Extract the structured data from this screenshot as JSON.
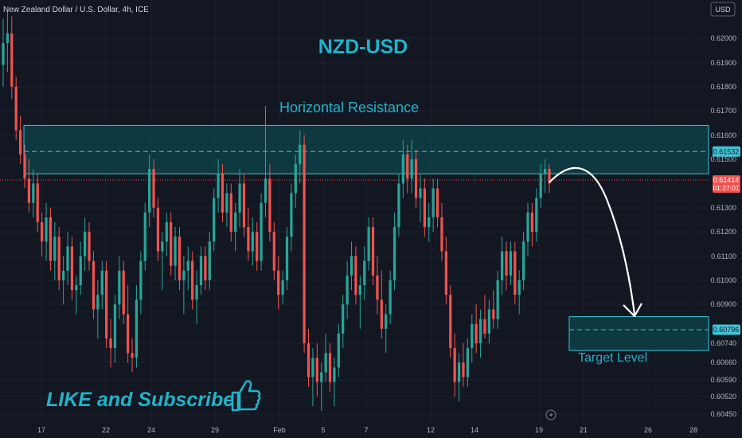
{
  "header": {
    "symbol": "New Zealand Dollar / U.S. Dollar, 4h, ICE",
    "currency_button": "USD"
  },
  "annotations": {
    "title": "NZD-USD",
    "resistance_label": "Horizontal Resistance",
    "target_label": "Target Level",
    "cta": "LIKE and Subscribe",
    "thumb_icon": "thumbs-up-icon",
    "lightning_icon": "lightning-icon"
  },
  "colors": {
    "background": "#131722",
    "bull": "#26a69a",
    "bear": "#ef5350",
    "accent": "#1fb3c9",
    "zone_fill": "#0e4046",
    "zone_border": "#3ec4d6",
    "text": "#b2b5be"
  },
  "chart_data": {
    "type": "candlestick",
    "title": "NZD-USD",
    "symbol": "New Zealand Dollar / U.S. Dollar, 4h, ICE",
    "interval": "4h",
    "y_ticks": [
      "0.62000",
      "0.61900",
      "0.61800",
      "0.61700",
      "0.61600",
      "0.61500",
      "0.61300",
      "0.61200",
      "0.61100",
      "0.61000",
      "0.60900",
      "0.60740",
      "0.60660",
      "0.60590",
      "0.60520",
      "0.60450"
    ],
    "x_ticks": [
      "17",
      "22",
      "24",
      "29",
      "Feb",
      "5",
      "7",
      "12",
      "14",
      "19",
      "21",
      "26",
      "28"
    ],
    "current_price": {
      "value": "0.61414",
      "countdown": "01:27:01"
    },
    "resistance_zone": {
      "low": 0.6144,
      "high": 0.6164,
      "mid": 0.61532,
      "mid_label": "0.61532"
    },
    "target_zone": {
      "low": 0.6071,
      "high": 0.6085,
      "mid": 0.60796,
      "mid_label": "0.60796"
    },
    "ylim": [
      0.6042,
      0.6213
    ],
    "candles": [
      [
        0.6189,
        0.6208,
        0.618,
        0.6198
      ],
      [
        0.6198,
        0.6211,
        0.6186,
        0.6202
      ],
      [
        0.6202,
        0.6209,
        0.6175,
        0.618
      ],
      [
        0.618,
        0.6184,
        0.6158,
        0.6162
      ],
      [
        0.6162,
        0.6168,
        0.6148,
        0.6152
      ],
      [
        0.6152,
        0.6156,
        0.6138,
        0.6142
      ],
      [
        0.6142,
        0.615,
        0.6128,
        0.6132
      ],
      [
        0.6132,
        0.6146,
        0.6126,
        0.614
      ],
      [
        0.614,
        0.6144,
        0.612,
        0.6124
      ],
      [
        0.6124,
        0.6128,
        0.611,
        0.6116
      ],
      [
        0.6116,
        0.6132,
        0.6108,
        0.6126
      ],
      [
        0.6126,
        0.613,
        0.6104,
        0.6108
      ],
      [
        0.6108,
        0.6124,
        0.61,
        0.6118
      ],
      [
        0.6118,
        0.6122,
        0.6096,
        0.61
      ],
      [
        0.61,
        0.611,
        0.609,
        0.6104
      ],
      [
        0.6104,
        0.612,
        0.6098,
        0.6114
      ],
      [
        0.6114,
        0.6118,
        0.6092,
        0.6096
      ],
      [
        0.6096,
        0.6102,
        0.6086,
        0.6098
      ],
      [
        0.6098,
        0.6116,
        0.6094,
        0.611
      ],
      [
        0.611,
        0.6126,
        0.6104,
        0.612
      ],
      [
        0.612,
        0.6124,
        0.6104,
        0.6108
      ],
      [
        0.6108,
        0.6112,
        0.6084,
        0.6088
      ],
      [
        0.6088,
        0.61,
        0.6076,
        0.6094
      ],
      [
        0.6094,
        0.6108,
        0.6088,
        0.6104
      ],
      [
        0.6104,
        0.6108,
        0.6072,
        0.6076
      ],
      [
        0.6076,
        0.6084,
        0.6064,
        0.6072
      ],
      [
        0.6072,
        0.6094,
        0.6066,
        0.609
      ],
      [
        0.609,
        0.611,
        0.6084,
        0.6104
      ],
      [
        0.6104,
        0.6108,
        0.6082,
        0.6086
      ],
      [
        0.6086,
        0.6098,
        0.6066,
        0.607
      ],
      [
        0.607,
        0.6076,
        0.6062,
        0.6068
      ],
      [
        0.6068,
        0.6098,
        0.6064,
        0.6092
      ],
      [
        0.6092,
        0.6112,
        0.6086,
        0.6108
      ],
      [
        0.6108,
        0.6132,
        0.6104,
        0.6128
      ],
      [
        0.6128,
        0.6152,
        0.6122,
        0.6146
      ],
      [
        0.6146,
        0.615,
        0.6126,
        0.613
      ],
      [
        0.613,
        0.6134,
        0.6108,
        0.6112
      ],
      [
        0.6112,
        0.612,
        0.6096,
        0.6116
      ],
      [
        0.6116,
        0.6128,
        0.611,
        0.6124
      ],
      [
        0.6124,
        0.6128,
        0.6102,
        0.6106
      ],
      [
        0.6106,
        0.6122,
        0.61,
        0.6118
      ],
      [
        0.6118,
        0.6122,
        0.6096,
        0.61
      ],
      [
        0.61,
        0.611,
        0.6086,
        0.6104
      ],
      [
        0.6104,
        0.6114,
        0.6096,
        0.6108
      ],
      [
        0.6108,
        0.6112,
        0.6088,
        0.6092
      ],
      [
        0.6092,
        0.6104,
        0.6082,
        0.6098
      ],
      [
        0.6098,
        0.6114,
        0.6094,
        0.611
      ],
      [
        0.611,
        0.6114,
        0.6096,
        0.61
      ],
      [
        0.61,
        0.612,
        0.6096,
        0.6116
      ],
      [
        0.6116,
        0.6138,
        0.6112,
        0.6134
      ],
      [
        0.6134,
        0.615,
        0.6128,
        0.6144
      ],
      [
        0.6144,
        0.6148,
        0.6124,
        0.6128
      ],
      [
        0.6128,
        0.614,
        0.6122,
        0.6136
      ],
      [
        0.6136,
        0.614,
        0.6116,
        0.612
      ],
      [
        0.612,
        0.6132,
        0.6112,
        0.6128
      ],
      [
        0.6128,
        0.6146,
        0.6122,
        0.614
      ],
      [
        0.614,
        0.6144,
        0.6118,
        0.6122
      ],
      [
        0.6122,
        0.613,
        0.6108,
        0.6112
      ],
      [
        0.6112,
        0.6126,
        0.6106,
        0.612
      ],
      [
        0.612,
        0.6124,
        0.6104,
        0.6108
      ],
      [
        0.6108,
        0.6136,
        0.6104,
        0.6132
      ],
      [
        0.6132,
        0.6172,
        0.6126,
        0.6142
      ],
      [
        0.6142,
        0.6148,
        0.6116,
        0.612
      ],
      [
        0.612,
        0.6124,
        0.61,
        0.6104
      ],
      [
        0.6104,
        0.611,
        0.6088,
        0.6094
      ],
      [
        0.6094,
        0.6104,
        0.609,
        0.61
      ],
      [
        0.61,
        0.6122,
        0.6096,
        0.6118
      ],
      [
        0.6118,
        0.614,
        0.6112,
        0.6136
      ],
      [
        0.6136,
        0.6152,
        0.613,
        0.6148
      ],
      [
        0.6148,
        0.6162,
        0.614,
        0.6156
      ],
      [
        0.6156,
        0.616,
        0.607,
        0.6074
      ],
      [
        0.6074,
        0.608,
        0.6056,
        0.606
      ],
      [
        0.606,
        0.6072,
        0.6048,
        0.6068
      ],
      [
        0.6068,
        0.6074,
        0.6052,
        0.6058
      ],
      [
        0.6058,
        0.6066,
        0.6046,
        0.6062
      ],
      [
        0.6062,
        0.6078,
        0.6058,
        0.607
      ],
      [
        0.607,
        0.6074,
        0.6054,
        0.6058
      ],
      [
        0.6058,
        0.6068,
        0.6048,
        0.6064
      ],
      [
        0.6064,
        0.6082,
        0.606,
        0.6078
      ],
      [
        0.6078,
        0.6094,
        0.6072,
        0.609
      ],
      [
        0.609,
        0.6108,
        0.6084,
        0.6102
      ],
      [
        0.6102,
        0.6116,
        0.6096,
        0.611
      ],
      [
        0.611,
        0.6114,
        0.609,
        0.6094
      ],
      [
        0.6094,
        0.6102,
        0.608,
        0.6098
      ],
      [
        0.6098,
        0.6114,
        0.6092,
        0.6108
      ],
      [
        0.6108,
        0.6126,
        0.6104,
        0.6122
      ],
      [
        0.6122,
        0.6126,
        0.6098,
        0.6102
      ],
      [
        0.6102,
        0.611,
        0.6086,
        0.6092
      ],
      [
        0.6092,
        0.6104,
        0.6076,
        0.608
      ],
      [
        0.608,
        0.609,
        0.607,
        0.6086
      ],
      [
        0.6086,
        0.6104,
        0.6082,
        0.61
      ],
      [
        0.61,
        0.6128,
        0.6096,
        0.6122
      ],
      [
        0.6122,
        0.6144,
        0.6118,
        0.614
      ],
      [
        0.614,
        0.6158,
        0.6134,
        0.6152
      ],
      [
        0.6152,
        0.6156,
        0.6136,
        0.6142
      ],
      [
        0.6142,
        0.6158,
        0.6136,
        0.615
      ],
      [
        0.615,
        0.6154,
        0.613,
        0.6134
      ],
      [
        0.6134,
        0.6144,
        0.6124,
        0.6138
      ],
      [
        0.6138,
        0.6142,
        0.6118,
        0.6122
      ],
      [
        0.6122,
        0.6132,
        0.6116,
        0.6126
      ],
      [
        0.6126,
        0.6142,
        0.612,
        0.6138
      ],
      [
        0.6138,
        0.6142,
        0.6122,
        0.6126
      ],
      [
        0.6126,
        0.6132,
        0.6108,
        0.6112
      ],
      [
        0.6112,
        0.6118,
        0.609,
        0.6094
      ],
      [
        0.6094,
        0.6098,
        0.6068,
        0.6072
      ],
      [
        0.6072,
        0.6078,
        0.6052,
        0.6058
      ],
      [
        0.6058,
        0.607,
        0.605,
        0.6066
      ],
      [
        0.6066,
        0.6074,
        0.6056,
        0.606
      ],
      [
        0.606,
        0.6076,
        0.6056,
        0.6072
      ],
      [
        0.6072,
        0.6086,
        0.6066,
        0.6082
      ],
      [
        0.6082,
        0.609,
        0.607,
        0.6074
      ],
      [
        0.6074,
        0.6088,
        0.6068,
        0.6084
      ],
      [
        0.6084,
        0.6094,
        0.6076,
        0.6078
      ],
      [
        0.6078,
        0.6092,
        0.6074,
        0.6088
      ],
      [
        0.6088,
        0.6096,
        0.608,
        0.6084
      ],
      [
        0.6084,
        0.6104,
        0.608,
        0.61
      ],
      [
        0.61,
        0.6118,
        0.6094,
        0.6112
      ],
      [
        0.6112,
        0.6116,
        0.6096,
        0.6102
      ],
      [
        0.6102,
        0.6116,
        0.6098,
        0.6112
      ],
      [
        0.6112,
        0.6116,
        0.609,
        0.6094
      ],
      [
        0.6094,
        0.6104,
        0.6086,
        0.61
      ],
      [
        0.61,
        0.612,
        0.6096,
        0.6116
      ],
      [
        0.6116,
        0.6132,
        0.611,
        0.6128
      ],
      [
        0.6128,
        0.6132,
        0.6114,
        0.612
      ],
      [
        0.612,
        0.6138,
        0.6116,
        0.6134
      ],
      [
        0.6134,
        0.6148,
        0.613,
        0.6144
      ],
      [
        0.6144,
        0.615,
        0.6136,
        0.6146
      ],
      [
        0.6146,
        0.6148,
        0.6136,
        0.614
      ]
    ]
  }
}
